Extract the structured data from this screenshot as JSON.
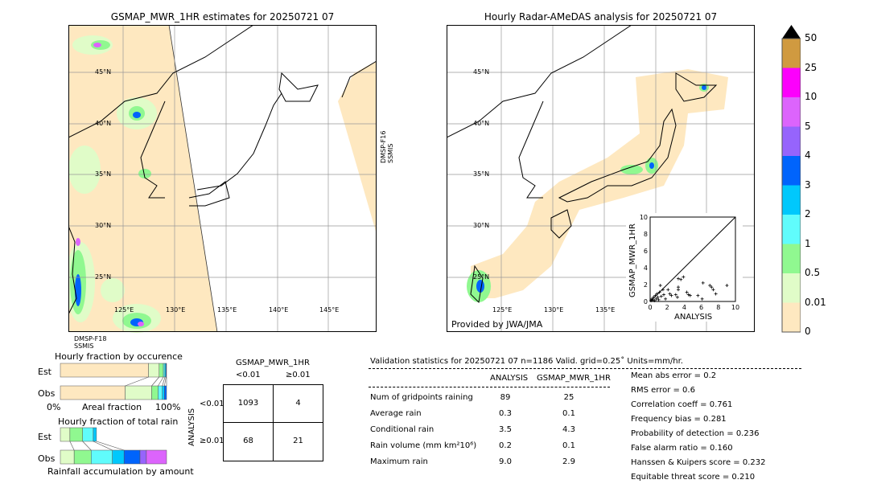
{
  "left_map": {
    "title": "GSMAP_MWR_1HR estimates for 20250721 07",
    "lat_labels": [
      "45°N",
      "40°N",
      "35°N",
      "30°N",
      "25°N"
    ],
    "lon_labels": [
      "125°E",
      "130°E",
      "135°E",
      "140°E",
      "145°E"
    ],
    "swath_f16": "DMSP-F16",
    "swath_f16_sensor": "SSMIS",
    "swath_f18": "DMSP-F18",
    "swath_f18_sensor": "SSMIS"
  },
  "right_map": {
    "title": "Hourly Radar-AMeDAS analysis for 20250721 07",
    "lat_labels": [
      "45°N",
      "40°N",
      "35°N",
      "30°N",
      "25°N"
    ],
    "lon_labels": [
      "125°E",
      "130°E",
      "135°E",
      "140°E",
      "145°E"
    ],
    "credit": "Provided by JWA/JMA"
  },
  "colorbar": {
    "ticks": [
      "0",
      "0.01",
      "0.5",
      "1",
      "2",
      "3",
      "4",
      "5",
      "10",
      "25",
      "50"
    ],
    "colors": [
      "#fee8c0",
      "#e0fcc8",
      "#90f890",
      "#60fcfc",
      "#00c8fc",
      "#0064fc",
      "#9664fc",
      "#dc64fc",
      "#fc00fc",
      "#d09a40"
    ],
    "extend_color": "#000000"
  },
  "chart_data": [
    {
      "type": "scatter",
      "xlabel": "ANALYSIS",
      "ylabel": "GSMAP_MWR_1HR",
      "xlim": [
        0,
        10
      ],
      "ylim": [
        0,
        10
      ],
      "xticks": [
        "0",
        "2",
        "4",
        "6",
        "8",
        "10"
      ],
      "yticks": [
        "0",
        "2",
        "4",
        "6",
        "8",
        "10"
      ],
      "points": [
        [
          0.1,
          0.1
        ],
        [
          0.2,
          0.3
        ],
        [
          0.3,
          0.2
        ],
        [
          0.4,
          0.5
        ],
        [
          0.5,
          0.1
        ],
        [
          0.6,
          0.7
        ],
        [
          0.7,
          0.3
        ],
        [
          0.8,
          0.9
        ],
        [
          0.9,
          0.5
        ],
        [
          1.0,
          0.2
        ],
        [
          1.1,
          1.1
        ],
        [
          1.2,
          1.9
        ],
        [
          1.3,
          0.6
        ],
        [
          1.5,
          1.4
        ],
        [
          1.6,
          0.8
        ],
        [
          1.8,
          0.3
        ],
        [
          2.1,
          1.4
        ],
        [
          2.3,
          0.9
        ],
        [
          2.5,
          0.7
        ],
        [
          3.0,
          0.8
        ],
        [
          3.2,
          0.5
        ],
        [
          3.3,
          1.4
        ],
        [
          3.3,
          1.7
        ],
        [
          3.3,
          2.7
        ],
        [
          3.6,
          2.6
        ],
        [
          3.9,
          2.9
        ],
        [
          4.3,
          1.1
        ],
        [
          4.5,
          0.8
        ],
        [
          4.7,
          0.7
        ],
        [
          5.6,
          0.7
        ],
        [
          6.1,
          0.3
        ],
        [
          6.2,
          2.2
        ],
        [
          7.0,
          1.9
        ],
        [
          7.2,
          1.7
        ],
        [
          7.4,
          1.4
        ],
        [
          7.7,
          0.9
        ],
        [
          9.0,
          1.9
        ]
      ]
    },
    {
      "type": "bar",
      "title": "Hourly fraction by occurence",
      "categories": [
        "Est",
        "Obs"
      ],
      "xlabel": "Areal fraction",
      "xtick_left": "0%",
      "xtick_right": "100%",
      "stacked_fractions": {
        "Est": [
          0.83,
          0.1,
          0.04,
          0.015,
          0.01,
          0.005
        ],
        "Obs": [
          0.61,
          0.25,
          0.06,
          0.04,
          0.02,
          0.02
        ]
      }
    },
    {
      "type": "bar",
      "title": "Hourly fraction of total rain",
      "categories": [
        "Est",
        "Obs"
      ],
      "xlabel": "Rainfall accumulation by amount",
      "stacked_fractions": {
        "Est": [
          0.09,
          0.12,
          0.1,
          0.03
        ],
        "Obs": [
          0.13,
          0.16,
          0.2,
          0.11,
          0.15,
          0.06,
          0.19
        ]
      }
    }
  ],
  "contingency": {
    "title": "GSMAP_MWR_1HR",
    "col_headers": [
      "<0.01",
      "≥0.01"
    ],
    "row_axis": "ANALYSIS",
    "row_headers": [
      "<0.01",
      "≥0.01"
    ],
    "cells": [
      [
        "1093",
        "4"
      ],
      [
        "68",
        "21"
      ]
    ]
  },
  "stats": {
    "header": "Validation statistics for 20250721 07  n=1186 Valid. grid=0.25˚ Units=mm/hr.",
    "col_analysis": "ANALYSIS",
    "col_gsmap": "GSMAP_MWR_1HR",
    "rows": [
      {
        "label": "Num of gridpoints raining",
        "a": "89",
        "g": "25"
      },
      {
        "label": "Average rain",
        "a": "0.3",
        "g": "0.1"
      },
      {
        "label": "Conditional rain",
        "a": "3.5",
        "g": "4.3"
      },
      {
        "label": "Rain volume (mm km²10⁶)",
        "a": "0.2",
        "g": "0.1"
      },
      {
        "label": "Maximum rain",
        "a": "9.0",
        "g": "2.9"
      }
    ],
    "scores": [
      "Mean abs error =    0.2",
      "RMS error =    0.6",
      "Correlation coeff =  0.761",
      "Frequency bias =  0.281",
      "Probability of detection =  0.236",
      "False alarm ratio =  0.160",
      "Hanssen & Kuipers score =  0.232",
      "Equitable threat score =  0.210"
    ]
  }
}
